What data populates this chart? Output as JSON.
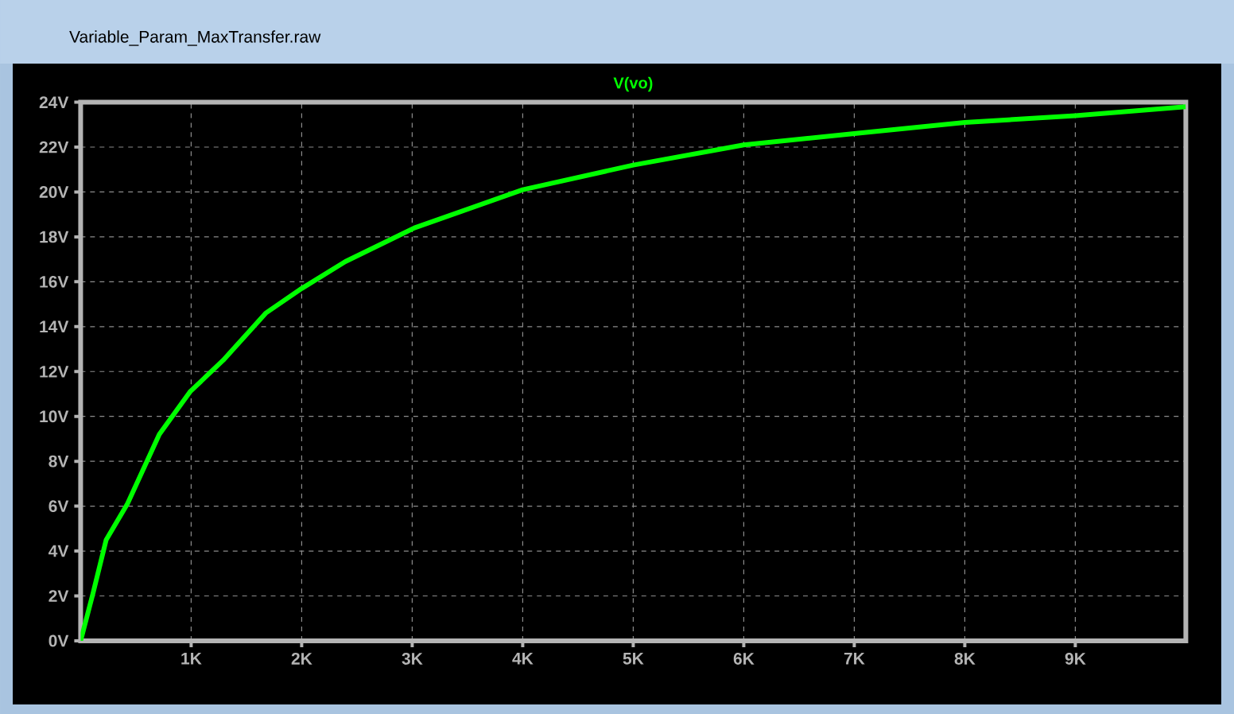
{
  "chart_data": {
    "type": "line",
    "title": "Variable_Param_MaxTransfer.raw",
    "x": [
      0,
      111,
      231,
      423,
      712,
      990,
      1289,
      1674,
      2000,
      2395,
      3020,
      4000,
      5000,
      6000,
      7000,
      8000,
      9000,
      10000
    ],
    "series": [
      {
        "name": "V(vo)",
        "color": "#00ff00",
        "values": [
          0,
          2.1,
          4.5,
          6.1,
          9.2,
          11.1,
          12.5,
          14.6,
          15.7,
          16.9,
          18.4,
          20.1,
          21.2,
          22.1,
          22.6,
          23.1,
          23.4,
          23.8
        ]
      }
    ],
    "xlim": [
      0,
      10000
    ],
    "xticks": [
      {
        "value": 1000,
        "label": "1K"
      },
      {
        "value": 2000,
        "label": "2K"
      },
      {
        "value": 3000,
        "label": "3K"
      },
      {
        "value": 4000,
        "label": "4K"
      },
      {
        "value": 5000,
        "label": "5K"
      },
      {
        "value": 6000,
        "label": "6K"
      },
      {
        "value": 7000,
        "label": "7K"
      },
      {
        "value": 8000,
        "label": "8K"
      },
      {
        "value": 9000,
        "label": "9K"
      }
    ],
    "ylim": [
      0,
      24
    ],
    "yticks": [
      {
        "value": 0,
        "label": "0V"
      },
      {
        "value": 2,
        "label": "2V"
      },
      {
        "value": 4,
        "label": "4V"
      },
      {
        "value": 6,
        "label": "6V"
      },
      {
        "value": 8,
        "label": "8V"
      },
      {
        "value": 10,
        "label": "10V"
      },
      {
        "value": 12,
        "label": "12V"
      },
      {
        "value": 14,
        "label": "14V"
      },
      {
        "value": 16,
        "label": "16V"
      },
      {
        "value": 18,
        "label": "18V"
      },
      {
        "value": 20,
        "label": "20V"
      },
      {
        "value": 22,
        "label": "22V"
      },
      {
        "value": 24,
        "label": "24V"
      }
    ],
    "grid": true,
    "marker": "none",
    "line_style": "solid"
  }
}
